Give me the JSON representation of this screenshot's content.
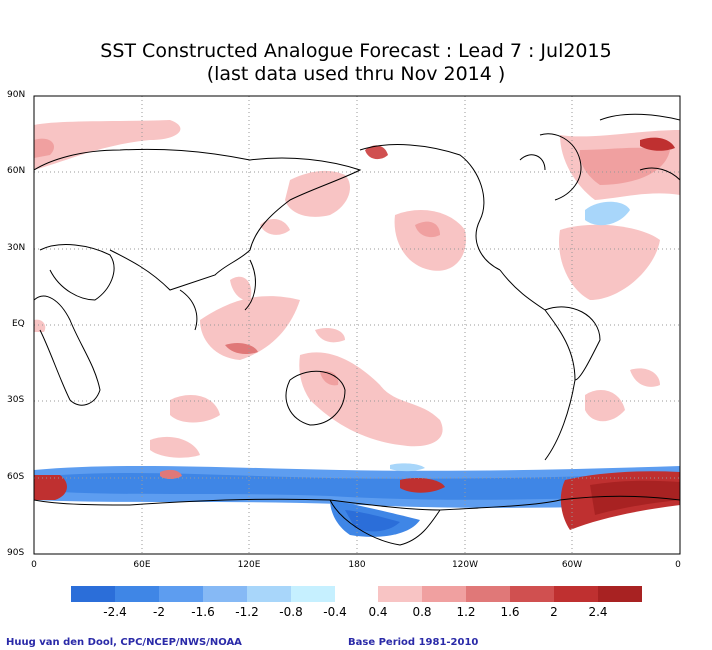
{
  "title": {
    "line1": "SST Constructed Analogue Forecast : Lead 7 : Jul2015",
    "line2": "(last data used thru Nov 2014 )"
  },
  "map": {
    "projection": "equirectangular",
    "lat_labels": [
      "90N",
      "60N",
      "30N",
      "EQ",
      "30S",
      "60S",
      "90S"
    ],
    "lon_labels": [
      "0",
      "60E",
      "120E",
      "180",
      "120W",
      "60W",
      "0"
    ],
    "grid": "dotted"
  },
  "colorbar": {
    "labels": [
      "-2.4",
      "-2",
      "-1.6",
      "-1.2",
      "-0.8",
      "-0.4",
      "0.4",
      "0.8",
      "1.2",
      "1.6",
      "2",
      "2.4"
    ],
    "negative_colors": [
      "#2b6ed9",
      "#3f86e6",
      "#5d9df0",
      "#86b9f5",
      "#a8d6fa",
      "#c6f0ff"
    ],
    "positive_colors": [
      "#f8c4c4",
      "#f0a0a0",
      "#e07878",
      "#d05050",
      "#bf3030",
      "#a82222"
    ]
  },
  "credits": {
    "left": "Huug van den Dool, CPC/NCEP/NWS/NOAA",
    "right": "Base Period 1981-2010"
  }
}
